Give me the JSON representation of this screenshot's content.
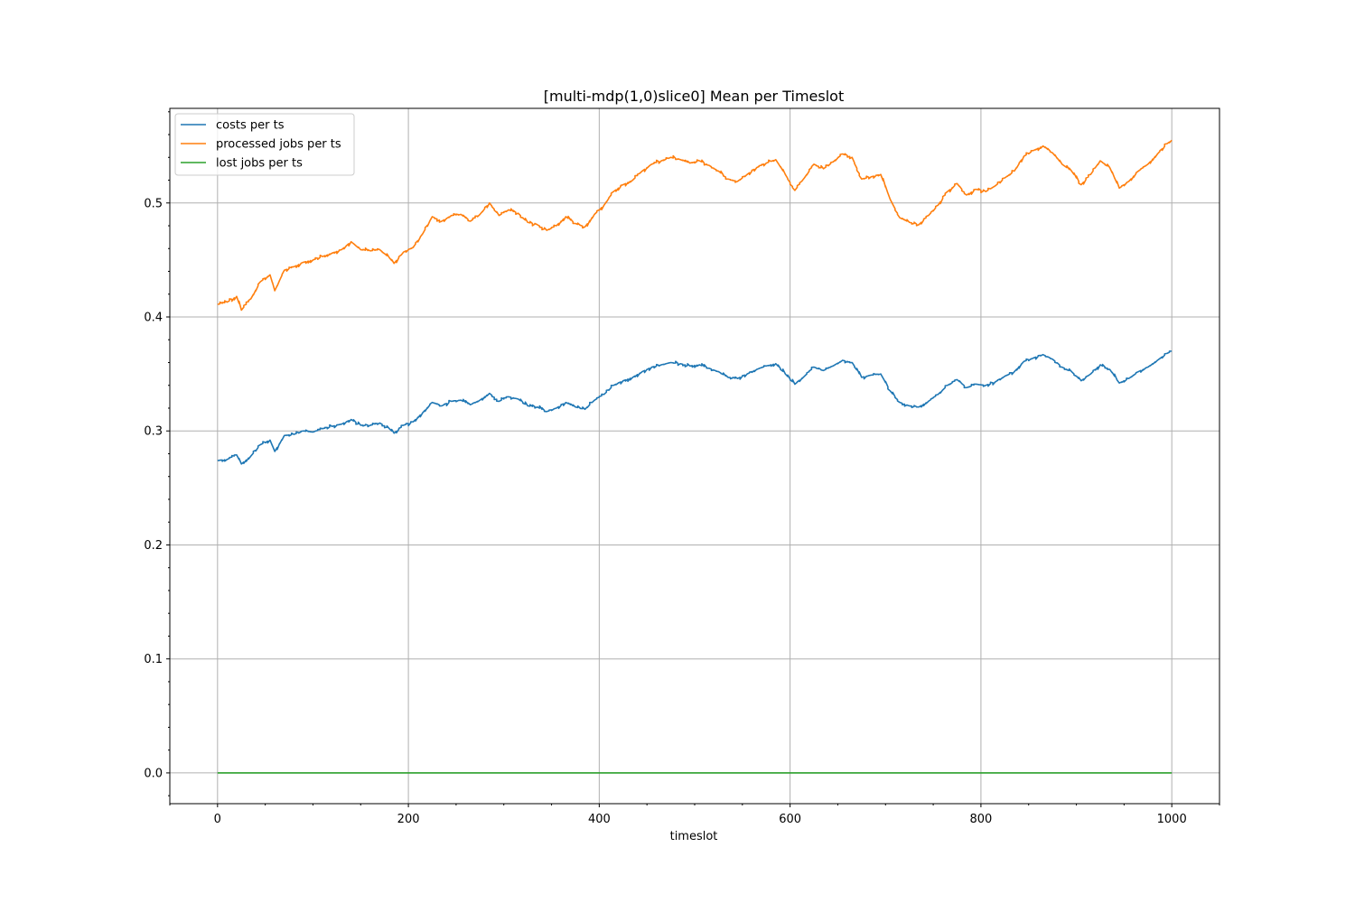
{
  "chart_data": {
    "type": "line",
    "title": "[multi-mdp(1,0)slice0] Mean per Timeslot",
    "xlabel": "timeslot",
    "ylabel": "",
    "xlim": [
      -50,
      1050
    ],
    "ylim": [
      -0.027,
      0.583
    ],
    "xticks": [
      0,
      200,
      400,
      600,
      800,
      1000
    ],
    "yticks": [
      0.0,
      0.1,
      0.2,
      0.3,
      0.4,
      0.5
    ],
    "xtick_labels": [
      "0",
      "200",
      "400",
      "600",
      "800",
      "1000"
    ],
    "ytick_labels": [
      "0.0",
      "0.1",
      "0.2",
      "0.3",
      "0.4",
      "0.5"
    ],
    "grid": true,
    "legend_position": "top-left",
    "series": [
      {
        "name": "costs per ts",
        "color": "#1f77b4",
        "x": [
          0,
          10,
          20,
          25,
          35,
          45,
          55,
          60,
          70,
          80,
          90,
          100,
          110,
          120,
          130,
          140,
          150,
          160,
          170,
          180,
          185,
          195,
          205,
          215,
          225,
          235,
          245,
          255,
          265,
          275,
          285,
          295,
          305,
          315,
          325,
          335,
          345,
          355,
          365,
          375,
          385,
          395,
          405,
          415,
          425,
          435,
          445,
          455,
          465,
          475,
          485,
          495,
          505,
          515,
          525,
          535,
          545,
          555,
          565,
          575,
          585,
          595,
          605,
          615,
          625,
          635,
          645,
          655,
          665,
          675,
          685,
          695,
          705,
          715,
          725,
          735,
          745,
          755,
          765,
          775,
          785,
          795,
          805,
          815,
          825,
          835,
          845,
          855,
          865,
          875,
          885,
          895,
          905,
          915,
          925,
          935,
          945,
          955,
          965,
          975,
          985,
          995,
          1000
        ],
        "y": [
          0.274,
          0.275,
          0.279,
          0.271,
          0.278,
          0.288,
          0.292,
          0.282,
          0.296,
          0.297,
          0.3,
          0.299,
          0.302,
          0.304,
          0.306,
          0.31,
          0.305,
          0.305,
          0.307,
          0.302,
          0.298,
          0.305,
          0.308,
          0.316,
          0.325,
          0.322,
          0.326,
          0.327,
          0.323,
          0.327,
          0.333,
          0.326,
          0.33,
          0.328,
          0.322,
          0.321,
          0.317,
          0.32,
          0.325,
          0.321,
          0.319,
          0.327,
          0.332,
          0.34,
          0.344,
          0.347,
          0.352,
          0.356,
          0.358,
          0.36,
          0.359,
          0.357,
          0.358,
          0.355,
          0.352,
          0.347,
          0.346,
          0.35,
          0.354,
          0.357,
          0.359,
          0.35,
          0.341,
          0.348,
          0.356,
          0.353,
          0.357,
          0.362,
          0.36,
          0.347,
          0.349,
          0.35,
          0.335,
          0.325,
          0.322,
          0.321,
          0.326,
          0.332,
          0.34,
          0.345,
          0.338,
          0.341,
          0.34,
          0.343,
          0.348,
          0.352,
          0.361,
          0.364,
          0.367,
          0.363,
          0.356,
          0.352,
          0.344,
          0.35,
          0.358,
          0.354,
          0.342,
          0.346,
          0.352,
          0.356,
          0.362,
          0.368,
          0.37
        ]
      },
      {
        "name": "processed jobs per ts",
        "color": "#ff7f0e",
        "x": [
          0,
          10,
          20,
          25,
          35,
          45,
          55,
          60,
          70,
          80,
          90,
          100,
          110,
          120,
          130,
          140,
          150,
          160,
          170,
          180,
          185,
          195,
          205,
          215,
          225,
          235,
          245,
          255,
          265,
          275,
          285,
          295,
          305,
          315,
          325,
          335,
          345,
          355,
          365,
          375,
          385,
          395,
          405,
          415,
          425,
          435,
          445,
          455,
          465,
          475,
          485,
          495,
          505,
          515,
          525,
          535,
          545,
          555,
          565,
          575,
          585,
          595,
          605,
          615,
          625,
          635,
          645,
          655,
          665,
          675,
          685,
          695,
          705,
          715,
          725,
          735,
          745,
          755,
          765,
          775,
          785,
          795,
          805,
          815,
          825,
          835,
          845,
          855,
          865,
          875,
          885,
          895,
          905,
          915,
          925,
          935,
          945,
          955,
          965,
          975,
          985,
          995,
          1000
        ],
        "y": [
          0.411,
          0.413,
          0.418,
          0.406,
          0.416,
          0.431,
          0.437,
          0.423,
          0.441,
          0.444,
          0.448,
          0.45,
          0.453,
          0.456,
          0.459,
          0.466,
          0.459,
          0.458,
          0.459,
          0.452,
          0.447,
          0.457,
          0.461,
          0.473,
          0.488,
          0.484,
          0.489,
          0.49,
          0.484,
          0.49,
          0.5,
          0.489,
          0.494,
          0.491,
          0.483,
          0.481,
          0.476,
          0.48,
          0.488,
          0.482,
          0.479,
          0.49,
          0.498,
          0.51,
          0.516,
          0.52,
          0.528,
          0.534,
          0.537,
          0.54,
          0.538,
          0.535,
          0.537,
          0.533,
          0.528,
          0.521,
          0.519,
          0.525,
          0.531,
          0.535,
          0.538,
          0.525,
          0.511,
          0.522,
          0.534,
          0.53,
          0.536,
          0.543,
          0.54,
          0.521,
          0.523,
          0.525,
          0.503,
          0.487,
          0.483,
          0.481,
          0.489,
          0.498,
          0.51,
          0.517,
          0.507,
          0.512,
          0.51,
          0.515,
          0.522,
          0.528,
          0.541,
          0.546,
          0.55,
          0.544,
          0.534,
          0.528,
          0.516,
          0.525,
          0.537,
          0.531,
          0.513,
          0.519,
          0.528,
          0.534,
          0.543,
          0.552,
          0.555
        ]
      },
      {
        "name": "lost jobs per ts",
        "color": "#2ca02c",
        "x": [
          0,
          1000
        ],
        "y": [
          0.0,
          0.0
        ]
      }
    ]
  }
}
